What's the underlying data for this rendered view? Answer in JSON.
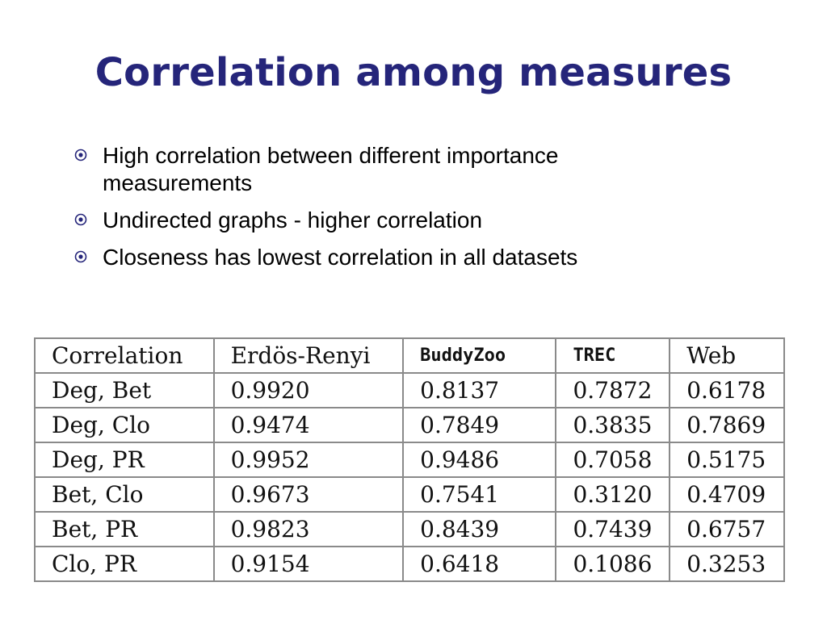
{
  "slide": {
    "title": "Correlation among measures",
    "bullets": [
      "High correlation between different importance measurements",
      "Undirected graphs - higher correlation",
      "Closeness has lowest correlation in all datasets"
    ],
    "bullet_icon": "circled-dot-icon",
    "title_color": "#25257a"
  },
  "table": {
    "headers": [
      "Correlation",
      "Erdös-Renyi",
      "BuddyZoo",
      "TREC",
      "Web"
    ],
    "rows": [
      [
        "Deg, Bet",
        "0.9920",
        "0.8137",
        "0.7872",
        "0.6178"
      ],
      [
        "Deg, Clo",
        "0.9474",
        "0.7849",
        "0.3835",
        "0.7869"
      ],
      [
        "Deg, PR",
        "0.9952",
        "0.9486",
        "0.7058",
        "0.5175"
      ],
      [
        "Bet, Clo",
        "0.9673",
        "0.7541",
        "0.3120",
        "0.4709"
      ],
      [
        "Bet, PR",
        "0.9823",
        "0.8439",
        "0.7439",
        "0.6757"
      ],
      [
        "Clo, PR",
        "0.9154",
        "0.6418",
        "0.1086",
        "0.3253"
      ]
    ]
  }
}
